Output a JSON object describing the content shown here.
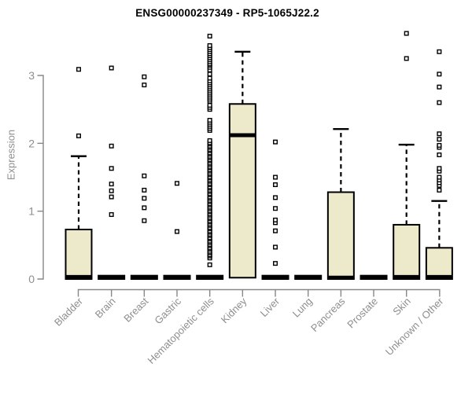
{
  "figure": {
    "title": "ENSG00000237349 - RP5-1065J22.2",
    "y_axis_label": "Expression"
  },
  "colors": {
    "box_fill": "#EDE9CB",
    "box_border": "#000000",
    "median": "#000000",
    "whisker": "#000000",
    "outlier_stroke": "#000000",
    "outlier_fill": "#ffffff",
    "axis": "#878787",
    "tick_label": "#8e8e8e",
    "title": "#000000"
  },
  "chart_data": {
    "type": "boxplot",
    "title": "ENSG00000237349 - RP5-1065J22.2",
    "xlabel": "",
    "ylabel": "Expression",
    "ylim": [
      0,
      3.7
    ],
    "yticks": [
      0,
      1,
      2,
      3
    ],
    "grid": false,
    "legend": "none",
    "categories": [
      "Bladder",
      "Brain",
      "Breast",
      "Gastric",
      "Hematopoietic cells",
      "Kidney",
      "Liver",
      "Lung",
      "Pancreas",
      "Prostate",
      "Skin",
      "Unknown / Other"
    ],
    "boxes": [
      {
        "category": "Bladder",
        "q1": 0,
        "median": 0.03,
        "q3": 0.73,
        "whisker_low": 0,
        "whisker_high": 1.81,
        "outliers": [
          2.11,
          3.09
        ]
      },
      {
        "category": "Brain",
        "q1": 0,
        "median": 0.02,
        "q3": 0.05,
        "whisker_low": 0,
        "whisker_high": 0.05,
        "outliers": [
          0.95,
          1.21,
          1.3,
          1.4,
          1.63,
          1.96,
          3.11
        ]
      },
      {
        "category": "Breast",
        "q1": 0,
        "median": 0.02,
        "q3": 0.05,
        "whisker_low": 0,
        "whisker_high": 0.05,
        "outliers": [
          0.86,
          1.05,
          1.19,
          1.31,
          1.52,
          2.86,
          2.98
        ]
      },
      {
        "category": "Gastric",
        "q1": 0,
        "median": 0.02,
        "q3": 0.05,
        "whisker_low": 0,
        "whisker_high": 0.05,
        "outliers": [
          0.7,
          1.41
        ]
      },
      {
        "category": "Hematopoietic cells",
        "q1": 0,
        "median": 0.02,
        "q3": 0.05,
        "whisker_low": 0,
        "whisker_high": 0.05,
        "outliers": [
          0.21,
          0.31,
          0.34,
          0.36,
          0.39,
          0.41,
          0.44,
          0.46,
          0.49,
          0.51,
          0.54,
          0.56,
          0.59,
          0.61,
          0.64,
          0.66,
          0.69,
          0.71,
          0.74,
          0.76,
          0.79,
          0.81,
          0.84,
          0.86,
          0.89,
          0.91,
          0.94,
          0.96,
          0.99,
          1.01,
          1.04,
          1.06,
          1.09,
          1.11,
          1.14,
          1.16,
          1.19,
          1.21,
          1.24,
          1.26,
          1.29,
          1.31,
          1.34,
          1.36,
          1.39,
          1.41,
          1.44,
          1.46,
          1.49,
          1.51,
          1.54,
          1.56,
          1.59,
          1.61,
          1.64,
          1.66,
          1.69,
          1.71,
          1.74,
          1.76,
          1.79,
          1.81,
          1.84,
          1.86,
          1.89,
          1.91,
          1.94,
          1.96,
          1.99,
          2.01,
          2.04,
          2.19,
          2.22,
          2.25,
          2.28,
          2.31,
          2.34,
          2.5,
          2.53,
          2.56,
          2.62,
          2.65,
          2.68,
          2.71,
          2.74,
          2.77,
          2.8,
          2.83,
          2.86,
          2.89,
          2.92,
          2.96,
          3.02,
          3.08,
          3.12,
          3.15,
          3.17,
          3.2,
          3.23,
          3.26,
          3.29,
          3.32,
          3.35,
          3.38,
          3.41,
          3.44,
          3.58
        ]
      },
      {
        "category": "Kidney",
        "q1": 0.02,
        "median": 2.12,
        "q3": 2.58,
        "whisker_low": 0.02,
        "whisker_high": 3.35,
        "outliers": []
      },
      {
        "category": "Liver",
        "q1": 0,
        "median": 0.02,
        "q3": 0.05,
        "whisker_low": 0,
        "whisker_high": 0.05,
        "outliers": [
          0.23,
          0.47,
          0.71,
          0.83,
          0.87,
          1.04,
          1.2,
          1.39,
          1.5,
          2.02
        ]
      },
      {
        "category": "Lung",
        "q1": 0,
        "median": 0.02,
        "q3": 0.05,
        "whisker_low": 0,
        "whisker_high": 0.05,
        "outliers": []
      },
      {
        "category": "Pancreas",
        "q1": 0,
        "median": 0.02,
        "q3": 1.28,
        "whisker_low": 0,
        "whisker_high": 2.21,
        "outliers": []
      },
      {
        "category": "Prostate",
        "q1": 0,
        "median": 0.02,
        "q3": 0.05,
        "whisker_low": 0,
        "whisker_high": 0.05,
        "outliers": []
      },
      {
        "category": "Skin",
        "q1": 0,
        "median": 0.03,
        "q3": 0.8,
        "whisker_low": 0,
        "whisker_high": 1.98,
        "outliers": [
          3.25,
          3.62
        ]
      },
      {
        "category": "Unknown / Other",
        "q1": 0,
        "median": 0.03,
        "q3": 0.46,
        "whisker_low": 0,
        "whisker_high": 1.15,
        "outliers": [
          1.31,
          1.38,
          1.42,
          1.46,
          1.5,
          1.59,
          1.63,
          1.83,
          1.94,
          1.97,
          2.06,
          2.14,
          2.6,
          2.83,
          3.02,
          3.35
        ]
      }
    ]
  }
}
